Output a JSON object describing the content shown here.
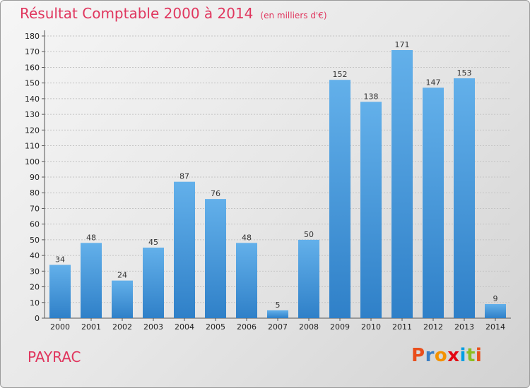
{
  "header": {
    "title": "Résultat Comptable 2000 à 2014",
    "subtitle": "(en milliers d'€)"
  },
  "footer": {
    "commune": "PAYRAC",
    "logo_letters": [
      "P",
      "r",
      "o",
      "x",
      "i",
      "t",
      "i"
    ],
    "logo_colors": [
      "#e94e1b",
      "#3b7fc4",
      "#f39200",
      "#e30613",
      "#009fe3",
      "#8cbe22",
      "#e94e1b"
    ]
  },
  "colors": {
    "bar": "#3d8fd6",
    "bar_light": "#63b0ea",
    "title": "#e0365e"
  },
  "chart_data": {
    "type": "bar",
    "categories": [
      "2000",
      "2001",
      "2002",
      "2003",
      "2004",
      "2005",
      "2006",
      "2007",
      "2008",
      "2009",
      "2010",
      "2011",
      "2012",
      "2013",
      "2014"
    ],
    "values": [
      34,
      48,
      24,
      45,
      87,
      76,
      48,
      5,
      50,
      152,
      138,
      171,
      147,
      153,
      9
    ],
    "ylim": [
      0,
      180
    ],
    "yticks": [
      0,
      10,
      20,
      30,
      40,
      50,
      60,
      70,
      80,
      90,
      100,
      110,
      120,
      130,
      140,
      150,
      160,
      170,
      180
    ],
    "grid": true
  }
}
